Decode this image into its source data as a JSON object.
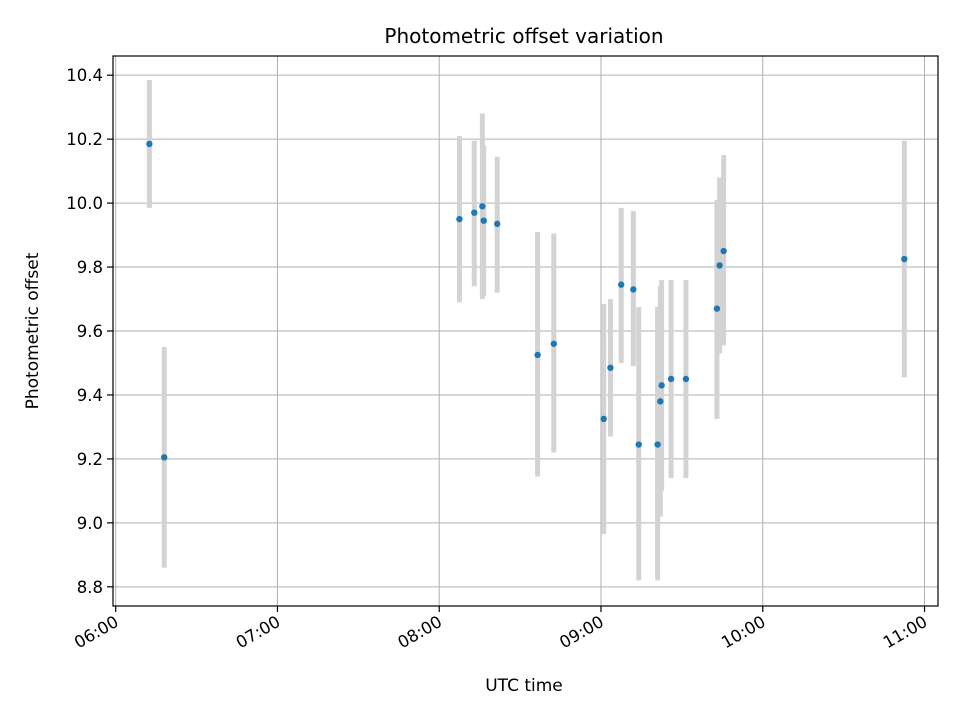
{
  "chart_data": {
    "type": "scatter",
    "title": "Photometric offset variation",
    "xlabel": "UTC time",
    "ylabel": "Photometric offset",
    "x_ticks": [
      "06:00",
      "07:00",
      "08:00",
      "09:00",
      "10:00",
      "11:00"
    ],
    "y_ticks": [
      "8.8",
      "9.0",
      "9.2",
      "9.4",
      "9.6",
      "9.8",
      "10.0",
      "10.2",
      "10.4"
    ],
    "xlim": [
      "05:59",
      "11:05"
    ],
    "ylim": [
      8.74,
      10.46
    ],
    "grid": true,
    "point_color": "#1f77b4",
    "errorbar_color": "#d3d3d3",
    "points": [
      {
        "time": "06:12:30",
        "value": 10.185,
        "lower": 9.985,
        "upper": 10.385
      },
      {
        "time": "06:18:00",
        "value": 9.205,
        "lower": 8.86,
        "upper": 9.55
      },
      {
        "time": "08:07:30",
        "value": 9.95,
        "lower": 9.69,
        "upper": 10.21
      },
      {
        "time": "08:13:00",
        "value": 9.97,
        "lower": 9.74,
        "upper": 10.195
      },
      {
        "time": "08:16:00",
        "value": 9.99,
        "lower": 9.7,
        "upper": 10.28
      },
      {
        "time": "08:16:30",
        "value": 9.945,
        "lower": 9.71,
        "upper": 10.18
      },
      {
        "time": "08:21:30",
        "value": 9.935,
        "lower": 9.72,
        "upper": 10.145
      },
      {
        "time": "08:36:30",
        "value": 9.525,
        "lower": 9.145,
        "upper": 9.91
      },
      {
        "time": "08:42:30",
        "value": 9.56,
        "lower": 9.22,
        "upper": 9.905
      },
      {
        "time": "09:01:00",
        "value": 9.325,
        "lower": 8.965,
        "upper": 9.685
      },
      {
        "time": "09:03:30",
        "value": 9.485,
        "lower": 9.27,
        "upper": 9.7
      },
      {
        "time": "09:07:30",
        "value": 9.745,
        "lower": 9.5,
        "upper": 9.985
      },
      {
        "time": "09:12:00",
        "value": 9.73,
        "lower": 9.49,
        "upper": 9.975
      },
      {
        "time": "09:14:00",
        "value": 9.245,
        "lower": 8.82,
        "upper": 9.675
      },
      {
        "time": "09:21:00",
        "value": 9.245,
        "lower": 8.82,
        "upper": 9.675
      },
      {
        "time": "09:22:00",
        "value": 9.38,
        "lower": 9.02,
        "upper": 9.74
      },
      {
        "time": "09:22:30",
        "value": 9.43,
        "lower": 9.1,
        "upper": 9.76
      },
      {
        "time": "09:26:00",
        "value": 9.45,
        "lower": 9.14,
        "upper": 9.76
      },
      {
        "time": "09:31:30",
        "value": 9.45,
        "lower": 9.14,
        "upper": 9.76
      },
      {
        "time": "09:43:00",
        "value": 9.67,
        "lower": 9.325,
        "upper": 10.01
      },
      {
        "time": "09:44:00",
        "value": 9.805,
        "lower": 9.53,
        "upper": 10.08
      },
      {
        "time": "09:45:30",
        "value": 9.85,
        "lower": 9.555,
        "upper": 10.15
      },
      {
        "time": "10:52:30",
        "value": 9.825,
        "lower": 9.455,
        "upper": 10.195
      }
    ]
  }
}
